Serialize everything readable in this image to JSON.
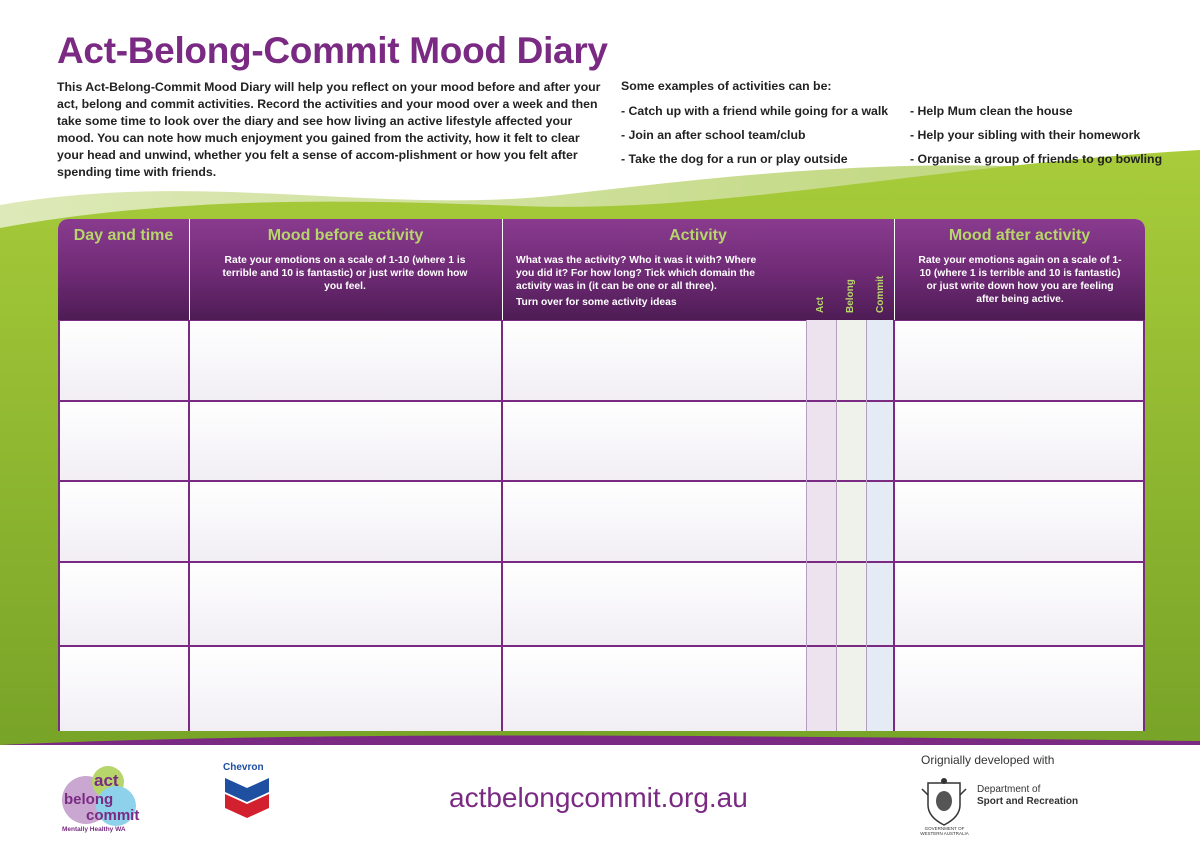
{
  "title": "Act-Belong-Commit Mood Diary",
  "intro": "This Act-Belong-Commit Mood Diary will help you reflect on your mood before and after your act, belong and commit activities. Record the activities and your mood over a week and then take some time to look over the diary and see how living an active lifestyle affected your mood. You can note how much enjoyment you gained from the activity, how it felt to clear your head and unwind, whether you felt a sense of accom-plishment or how you felt after spending time with friends.",
  "examples": {
    "heading": "Some examples of activities can be:",
    "left": [
      "- Catch up with a friend while going for a walk",
      "-  Join an after school team/club",
      "- Take the dog for a run or play outside"
    ],
    "right": [
      "- Help Mum clean the house",
      "- Help your sibling with their homework",
      "- Organise a group of friends to go bowling"
    ]
  },
  "table": {
    "col_day": "Day and time",
    "col_before": "Mood before activity",
    "col_before_desc": "Rate your emotions on a scale of 1-10 (where 1 is terrible and 10 is fantastic) or just write down how you feel.",
    "col_activity": "Activity",
    "col_activity_desc": "What was the activity? Who it was it with? Where you did it? For how long?  Tick which domain the activity was in (it can be one or all three).",
    "col_activity_note": "Turn over for some activity ideas",
    "domain_act": "Act",
    "domain_belong": "Belong",
    "domain_commit": "Commit",
    "col_after": "Mood after activity",
    "col_after_desc": "Rate your emotions again on a scale of 1-10 (where 1 is terrible and 10 is fantastic) or just write down how you are feeling after being active.",
    "row_count": 5
  },
  "footer": {
    "logo_words": [
      "act",
      "belong",
      "commit"
    ],
    "logo_tagline": "Mentally Healthy WA",
    "sponsor": "Chevron",
    "url": "actbelongcommit.org.au",
    "developed_with": "Orignially developed with",
    "crest_text": "GOVERNMENT OF WESTERN AUSTRALIA",
    "dept_line1": "Department of",
    "dept_line2": "Sport and Recreation"
  },
  "colors": {
    "purple": "#7a2a83",
    "green": "#8cb82b",
    "header_green_text": "#b6d56a"
  }
}
